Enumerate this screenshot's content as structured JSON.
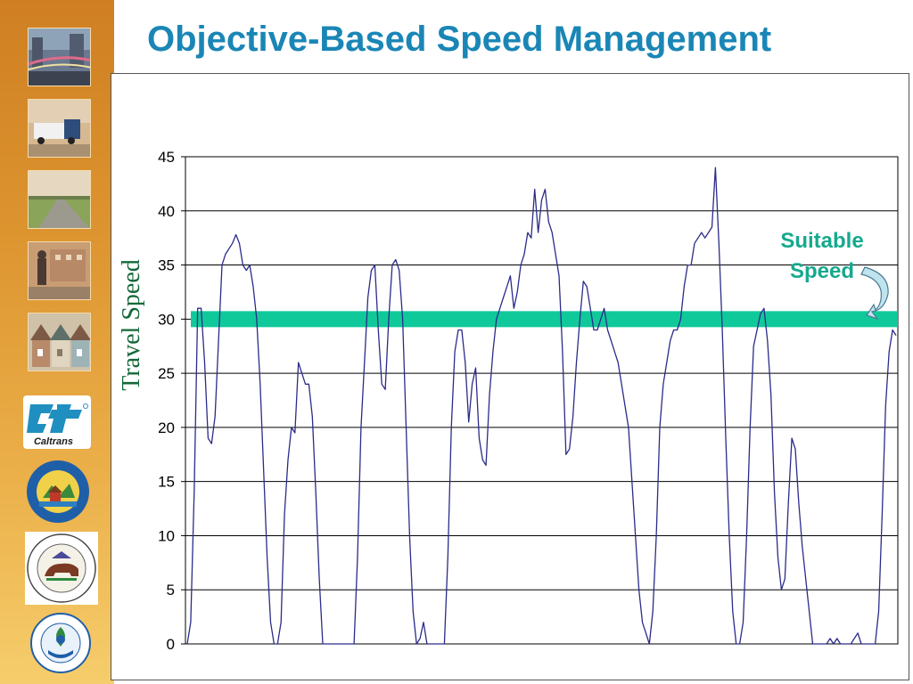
{
  "slide": {
    "title": "Objective-Based Speed Management",
    "annotation_lines": [
      "Suitable",
      "Speed"
    ],
    "colors": {
      "title": "#1a86b6",
      "sidebar": "#dd9530",
      "speed_line": "#2b2b8a",
      "suitable_band": "#10c99a",
      "annotation": "#16a98e",
      "ylabel": "#14683a"
    },
    "sidebar_images": [
      "city-traffic-photo",
      "truck-highway-photo",
      "rural-highway-photo",
      "pedestrian-street-photo",
      "townhouses-photo"
    ],
    "logos": [
      "caltrans-logo",
      "housing-community-development-seal",
      "governors-office-planning-research-seal",
      "epa-seal"
    ],
    "caltrans_wordmark": "Caltrans"
  },
  "chart_data": {
    "type": "line",
    "title": "",
    "xlabel": "",
    "ylabel": "Travel Speed",
    "ylim": [
      0,
      45
    ],
    "yticks": [
      0,
      5,
      10,
      15,
      20,
      25,
      30,
      35,
      40,
      45
    ],
    "grid": "horizontal",
    "reference_band": {
      "label": "Suitable Speed",
      "value": 30
    },
    "series": [
      {
        "values": [
          0,
          2,
          14,
          31,
          31,
          26,
          19,
          18.5,
          21,
          28,
          35,
          36,
          36.5,
          37,
          37.8,
          37,
          35,
          34.5,
          35,
          33,
          30,
          24,
          16,
          8,
          2,
          0,
          0,
          2,
          12,
          17,
          20,
          19.5,
          26,
          25,
          24,
          24,
          21,
          14,
          6,
          0,
          0,
          0,
          0,
          0,
          0,
          0,
          0,
          0,
          0,
          8,
          20,
          26,
          32,
          34.5,
          35,
          29,
          24,
          23.5,
          30,
          35,
          35.5,
          34.5,
          30,
          20,
          10,
          3,
          0,
          0.5,
          2,
          0,
          0,
          0,
          0,
          0,
          0,
          8,
          20,
          27,
          29,
          29,
          26,
          20.5,
          24,
          25.5,
          19,
          17,
          16.5,
          23,
          27,
          30,
          31,
          32,
          33,
          34,
          31,
          32.5,
          35,
          36,
          38,
          37.5,
          42,
          38,
          41,
          42,
          39,
          38,
          36,
          34,
          27,
          17.5,
          18,
          21,
          26,
          30,
          33.5,
          33,
          31,
          29,
          29,
          30,
          31,
          29,
          28,
          27,
          26,
          24,
          22,
          20,
          15,
          10,
          5,
          2,
          1,
          0,
          3,
          10,
          20,
          24,
          26,
          28,
          29,
          29,
          30,
          33,
          35,
          35,
          37,
          37.5,
          38,
          37.5,
          38,
          38.5,
          44,
          37,
          29,
          19,
          10,
          3,
          0,
          0,
          2,
          10,
          20,
          27.5,
          29,
          30.5,
          31,
          28,
          23,
          14,
          8,
          5,
          6,
          13,
          19,
          18,
          13,
          9,
          6,
          3,
          0,
          0,
          0,
          0,
          0,
          0.5,
          0,
          0.5,
          0,
          0,
          0,
          0,
          0.5,
          1,
          0,
          0,
          0,
          0,
          0,
          3,
          12,
          22,
          27,
          29,
          28.5
        ]
      }
    ]
  }
}
